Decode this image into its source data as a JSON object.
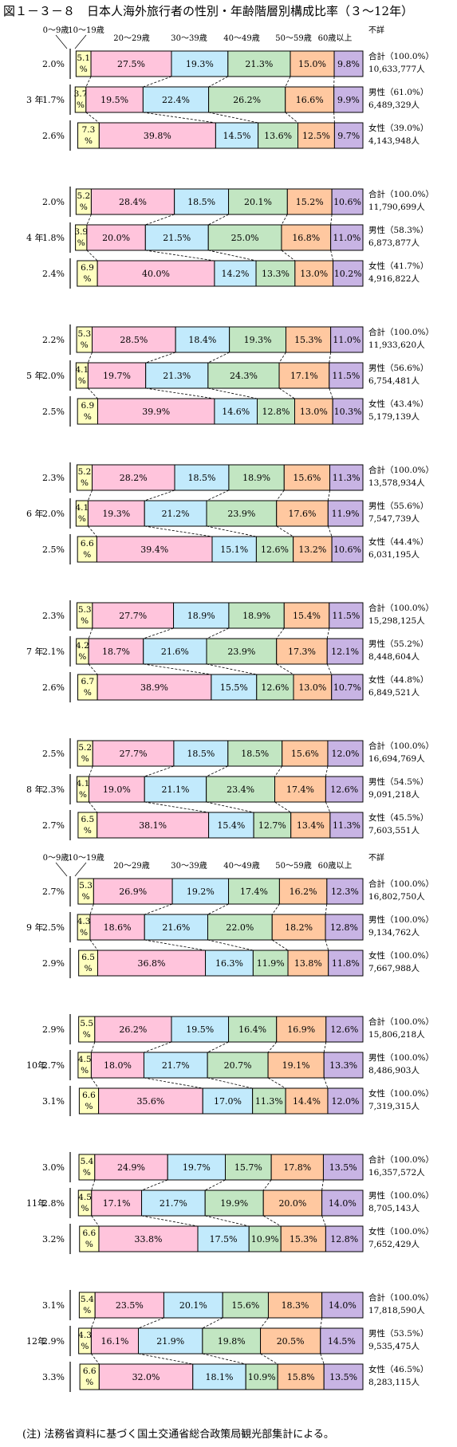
{
  "title": "図１－３－８　日本人海外旅行者の性別・年齢階層別構成比率（３～12年）",
  "note": "(注) 法務省資料に基づく国土交通省総合政策局観光部集計による。",
  "chart_data": {
    "type": "bar",
    "stacked": "100%",
    "orientation": "horizontal",
    "age_groups": [
      "0～9歳",
      "10～19歳",
      "20～29歳",
      "30～39歳",
      "40～49歳",
      "50～59歳",
      "60歳以上",
      "不詳"
    ],
    "colors": [
      "#ffffff",
      "#ffffc0",
      "#ffc4dc",
      "#c2eafc",
      "#c2e6c2",
      "#ffc8a0",
      "#c8b4e4",
      "#ffffff"
    ],
    "years": [
      {
        "label": "3 年",
        "rows": [
          {
            "values": [
              2.0,
              5.1,
              27.5,
              19.3,
              21.3,
              15.0,
              9.8
            ],
            "label": "合計（100.0%）",
            "count": "10,633,777人"
          },
          {
            "values": [
              1.7,
              3.7,
              19.5,
              22.4,
              26.2,
              16.6,
              9.9
            ],
            "label": "男性（61.0%）",
            "count": "6,489,329人"
          },
          {
            "values": [
              2.6,
              7.3,
              39.8,
              14.5,
              13.6,
              12.5,
              9.7
            ],
            "label": "女性（39.0%）",
            "count": "4,143,948人"
          }
        ]
      },
      {
        "label": "4 年",
        "rows": [
          {
            "values": [
              2.0,
              5.2,
              28.4,
              18.5,
              20.1,
              15.2,
              10.6
            ],
            "label": "合計（100.0%）",
            "count": "11,790,699人"
          },
          {
            "values": [
              1.8,
              3.9,
              20.0,
              21.5,
              25.0,
              16.8,
              11.0
            ],
            "label": "男性（58.3%）",
            "count": "6,873,877人"
          },
          {
            "values": [
              2.4,
              6.9,
              40.0,
              14.2,
              13.3,
              13.0,
              10.2
            ],
            "label": "女性（41.7%）",
            "count": "4,916,822人"
          }
        ]
      },
      {
        "label": "5 年",
        "rows": [
          {
            "values": [
              2.2,
              5.3,
              28.5,
              18.4,
              19.3,
              15.3,
              11.0
            ],
            "label": "合計（100.0%）",
            "count": "11,933,620人"
          },
          {
            "values": [
              2.0,
              4.1,
              19.7,
              21.3,
              24.3,
              17.1,
              11.5
            ],
            "label": "男性（56.6%）",
            "count": "6,754,481人"
          },
          {
            "values": [
              2.5,
              6.9,
              39.9,
              14.6,
              12.8,
              13.0,
              10.3
            ],
            "label": "女性（43.4%）",
            "count": "5,179,139人"
          }
        ]
      },
      {
        "label": "6 年",
        "rows": [
          {
            "values": [
              2.3,
              5.2,
              28.2,
              18.5,
              18.9,
              15.6,
              11.3
            ],
            "label": "合計（100.0%）",
            "count": "13,578,934人"
          },
          {
            "values": [
              2.0,
              4.1,
              19.3,
              21.2,
              23.9,
              17.6,
              11.9
            ],
            "label": "男性（55.6%）",
            "count": "7,547,739人"
          },
          {
            "values": [
              2.5,
              6.6,
              39.4,
              15.1,
              12.6,
              13.2,
              10.6
            ],
            "label": "女性（44.4%）",
            "count": "6,031,195人"
          }
        ]
      },
      {
        "label": "7 年",
        "rows": [
          {
            "values": [
              2.3,
              5.3,
              27.7,
              18.9,
              18.9,
              15.4,
              11.5
            ],
            "label": "合計（100.0%）",
            "count": "15,298,125人"
          },
          {
            "values": [
              2.1,
              4.2,
              18.7,
              21.6,
              23.9,
              17.3,
              12.1
            ],
            "label": "男性（55.2%）",
            "count": "8,448,604人"
          },
          {
            "values": [
              2.6,
              6.7,
              38.9,
              15.5,
              12.6,
              13.0,
              10.7
            ],
            "label": "女性（44.8%）",
            "count": "6,849,521人"
          }
        ]
      },
      {
        "label": "8 年",
        "rows": [
          {
            "values": [
              2.5,
              5.2,
              27.7,
              18.5,
              18.5,
              15.6,
              12.0
            ],
            "label": "合計（100.0%）",
            "count": "16,694,769人"
          },
          {
            "values": [
              2.3,
              4.1,
              19.0,
              21.1,
              23.4,
              17.4,
              12.6
            ],
            "label": "男性（54.5%）",
            "count": "9,091,218人"
          },
          {
            "values": [
              2.7,
              6.5,
              38.1,
              15.4,
              12.7,
              13.4,
              11.3
            ],
            "label": "女性（45.5%）",
            "count": "7,603,551人"
          }
        ]
      },
      {
        "label": "9 年",
        "rows": [
          {
            "values": [
              2.7,
              5.3,
              26.9,
              19.2,
              17.4,
              16.2,
              12.3
            ],
            "label": "合計（100.0%）",
            "count": "16,802,750人"
          },
          {
            "values": [
              2.5,
              4.3,
              18.6,
              21.6,
              22.0,
              18.2,
              12.8
            ],
            "label": "男性（100.0%）",
            "count": "9,134,762人"
          },
          {
            "values": [
              2.9,
              6.5,
              36.8,
              16.3,
              11.9,
              13.8,
              11.8
            ],
            "label": "女性（100.0%）",
            "count": "7,667,988人"
          }
        ]
      },
      {
        "label": "10年",
        "rows": [
          {
            "values": [
              2.9,
              5.5,
              26.2,
              19.5,
              16.4,
              16.9,
              12.6
            ],
            "label": "合計（100.0%）",
            "count": "15,806,218人"
          },
          {
            "values": [
              2.7,
              4.5,
              18.0,
              21.7,
              20.7,
              19.1,
              13.3
            ],
            "label": "男性（100.0%）",
            "count": "8,486,903人"
          },
          {
            "values": [
              3.1,
              6.6,
              35.6,
              17.0,
              11.3,
              14.4,
              12.0
            ],
            "label": "女性（100.0%）",
            "count": "7,319,315人"
          }
        ]
      },
      {
        "label": "11年",
        "rows": [
          {
            "values": [
              3.0,
              5.4,
              24.9,
              19.7,
              15.7,
              17.8,
              13.5
            ],
            "label": "合計（100.0%）",
            "count": "16,357,572人"
          },
          {
            "values": [
              2.8,
              4.5,
              17.1,
              21.7,
              19.9,
              20.0,
              14.0
            ],
            "label": "男性（100.0%）",
            "count": "8,705,143人"
          },
          {
            "values": [
              3.2,
              6.6,
              33.8,
              17.5,
              10.9,
              15.3,
              12.8
            ],
            "label": "女性（100.0%）",
            "count": "7,652,429人"
          }
        ]
      },
      {
        "label": "12年",
        "rows": [
          {
            "values": [
              3.1,
              5.4,
              23.5,
              20.1,
              15.6,
              18.3,
              14.0
            ],
            "label": "合計（100.0%）",
            "count": "17,818,590人"
          },
          {
            "values": [
              2.9,
              4.3,
              16.1,
              21.9,
              19.8,
              20.5,
              14.5
            ],
            "label": "男性（53.5%）",
            "count": "9,535,475人"
          },
          {
            "values": [
              3.3,
              6.6,
              32.0,
              18.1,
              10.9,
              15.8,
              13.5
            ],
            "label": "女性（46.5%）",
            "count": "8,283,115人"
          }
        ]
      }
    ]
  }
}
